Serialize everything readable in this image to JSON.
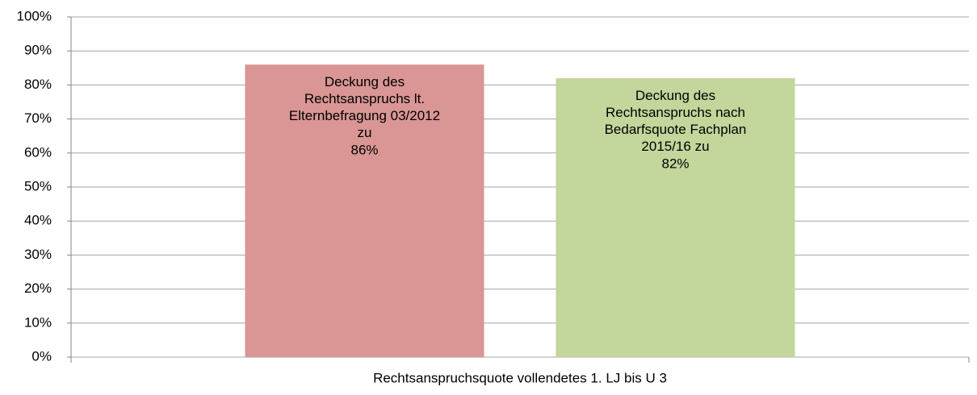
{
  "chart_data": {
    "type": "bar",
    "categories": [
      "Rechtsanspruchsquote vollendetes 1. LJ bis U 3"
    ],
    "series": [
      {
        "name": "Deckung des\nRechtsanspruchs lt.\nElternbefragung 03/2012\nzu",
        "color": "#d99694",
        "values": [
          86
        ],
        "value_labels": [
          "86%"
        ]
      },
      {
        "name": "Deckung des\nRechtsanspruchs nach\nBedarfsquote Fachplan\n2015/16 zu",
        "color": "#c3d69b",
        "values": [
          82
        ],
        "value_labels": [
          "82%"
        ]
      }
    ],
    "ylim": [
      0,
      100
    ],
    "yticks": [
      {
        "value": 0,
        "label": "0%"
      },
      {
        "value": 10,
        "label": "10%"
      },
      {
        "value": 20,
        "label": "20%"
      },
      {
        "value": 30,
        "label": "30%"
      },
      {
        "value": 40,
        "label": "40%"
      },
      {
        "value": 50,
        "label": "50%"
      },
      {
        "value": 60,
        "label": "60%"
      },
      {
        "value": 70,
        "label": "70%"
      },
      {
        "value": 80,
        "label": "80%"
      },
      {
        "value": 90,
        "label": "90%"
      },
      {
        "value": 100,
        "label": "100%"
      }
    ],
    "grid": true
  }
}
